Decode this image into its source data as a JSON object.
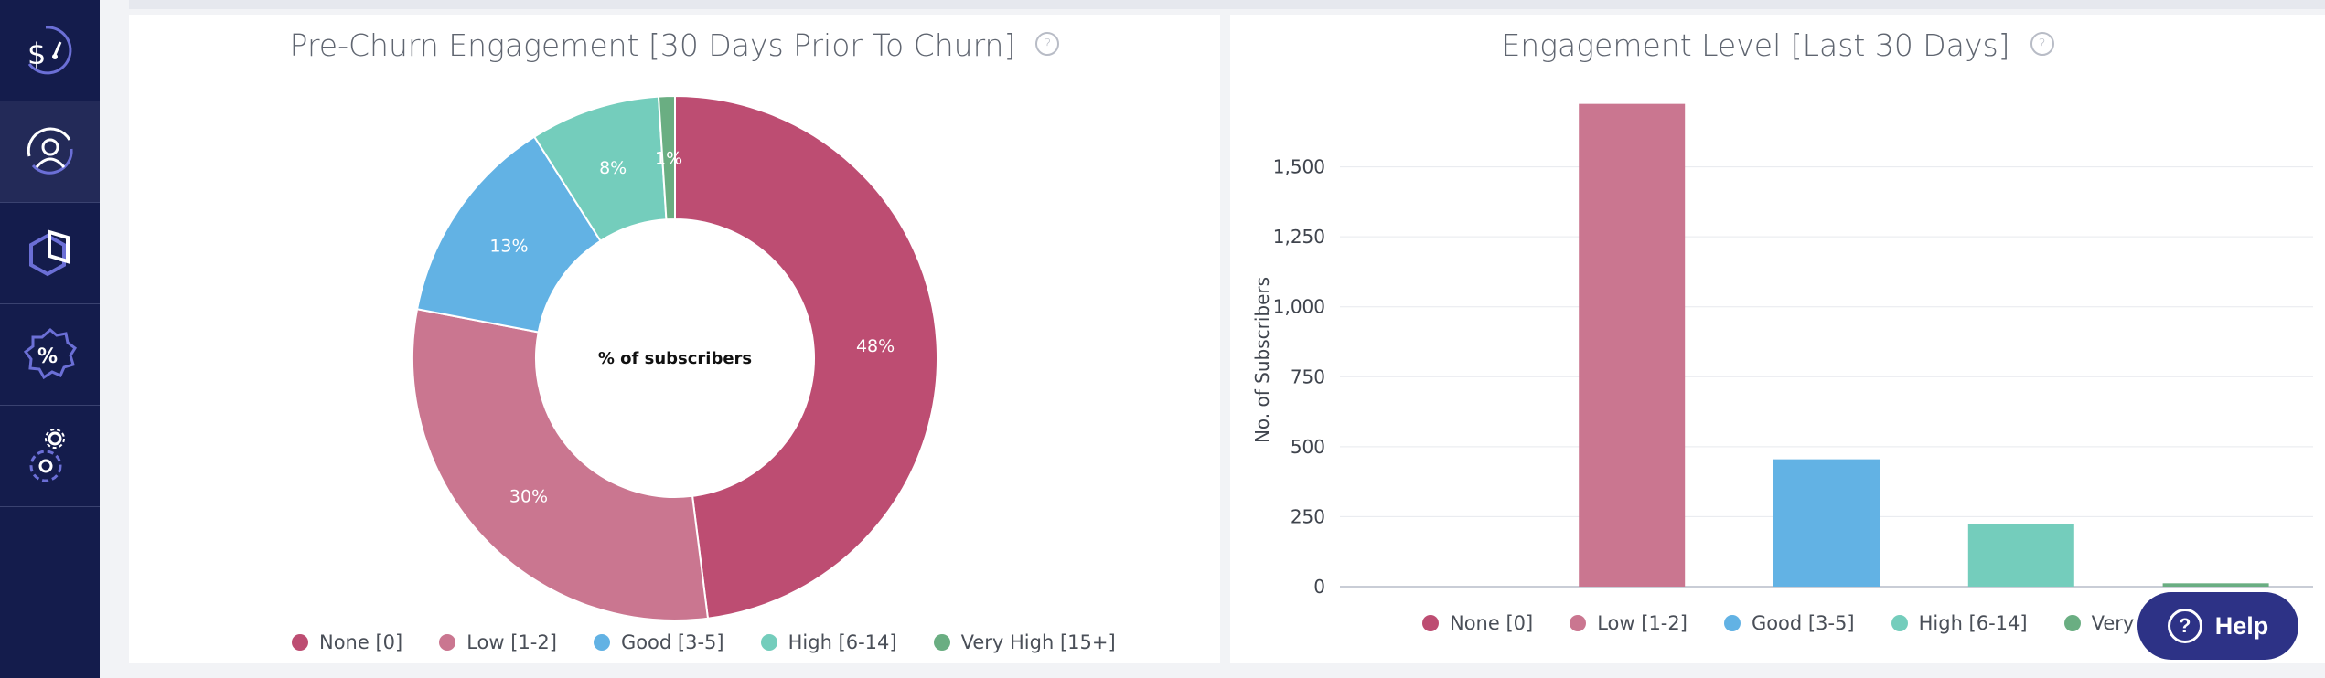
{
  "sidebar": {
    "items": [
      {
        "icon": "dollar-gauge-icon"
      },
      {
        "icon": "user-refresh-icon",
        "active": true
      },
      {
        "icon": "cube-icon"
      },
      {
        "icon": "percent-badge-icon"
      },
      {
        "icon": "gears-icon"
      }
    ]
  },
  "pie_panel": {
    "title": "Pre-Churn Engagement [30 Days Prior To Churn]",
    "info": "?"
  },
  "bar_panel": {
    "title": "Engagement Level [Last 30 Days]",
    "info": "?"
  },
  "help": {
    "label": "Help",
    "icon": "question-circle-icon"
  },
  "chart_data": [
    {
      "type": "pie",
      "title": "Pre-Churn Engagement [30 Days Prior To Churn]",
      "center_label": "% of subscribers",
      "categories": [
        "None [0]",
        "Low [1-2]",
        "Good [3-5]",
        "High [6-14]",
        "Very High [15+]"
      ],
      "values": [
        48,
        30,
        13,
        8,
        1
      ],
      "data_labels": [
        "48%",
        "30%",
        "13%",
        "8%",
        "1%"
      ],
      "colors": [
        "#bd4d72",
        "#ca7690",
        "#62b2e4",
        "#74cdbc",
        "#6aae82"
      ],
      "legend_position": "bottom"
    },
    {
      "type": "bar",
      "title": "Engagement Level [Last 30 Days]",
      "categories": [
        "None [0]",
        "Low [1-2]",
        "Good [3-5]",
        "High [6-14]",
        "Very High [15+]"
      ],
      "values": [
        0,
        1725,
        455,
        225,
        12
      ],
      "colors": [
        "#bd4d72",
        "#ca7690",
        "#62b2e4",
        "#74cdbc",
        "#6aae82"
      ],
      "ylabel": "No. of Subscribers",
      "ylim": [
        0,
        1750
      ],
      "yticks": [
        0,
        250,
        500,
        750,
        1000,
        1250,
        1500
      ],
      "ytick_labels": [
        "0",
        "250",
        "500",
        "750",
        "1,000",
        "1,250",
        "1,500"
      ],
      "grid": true,
      "legend_position": "bottom"
    }
  ]
}
